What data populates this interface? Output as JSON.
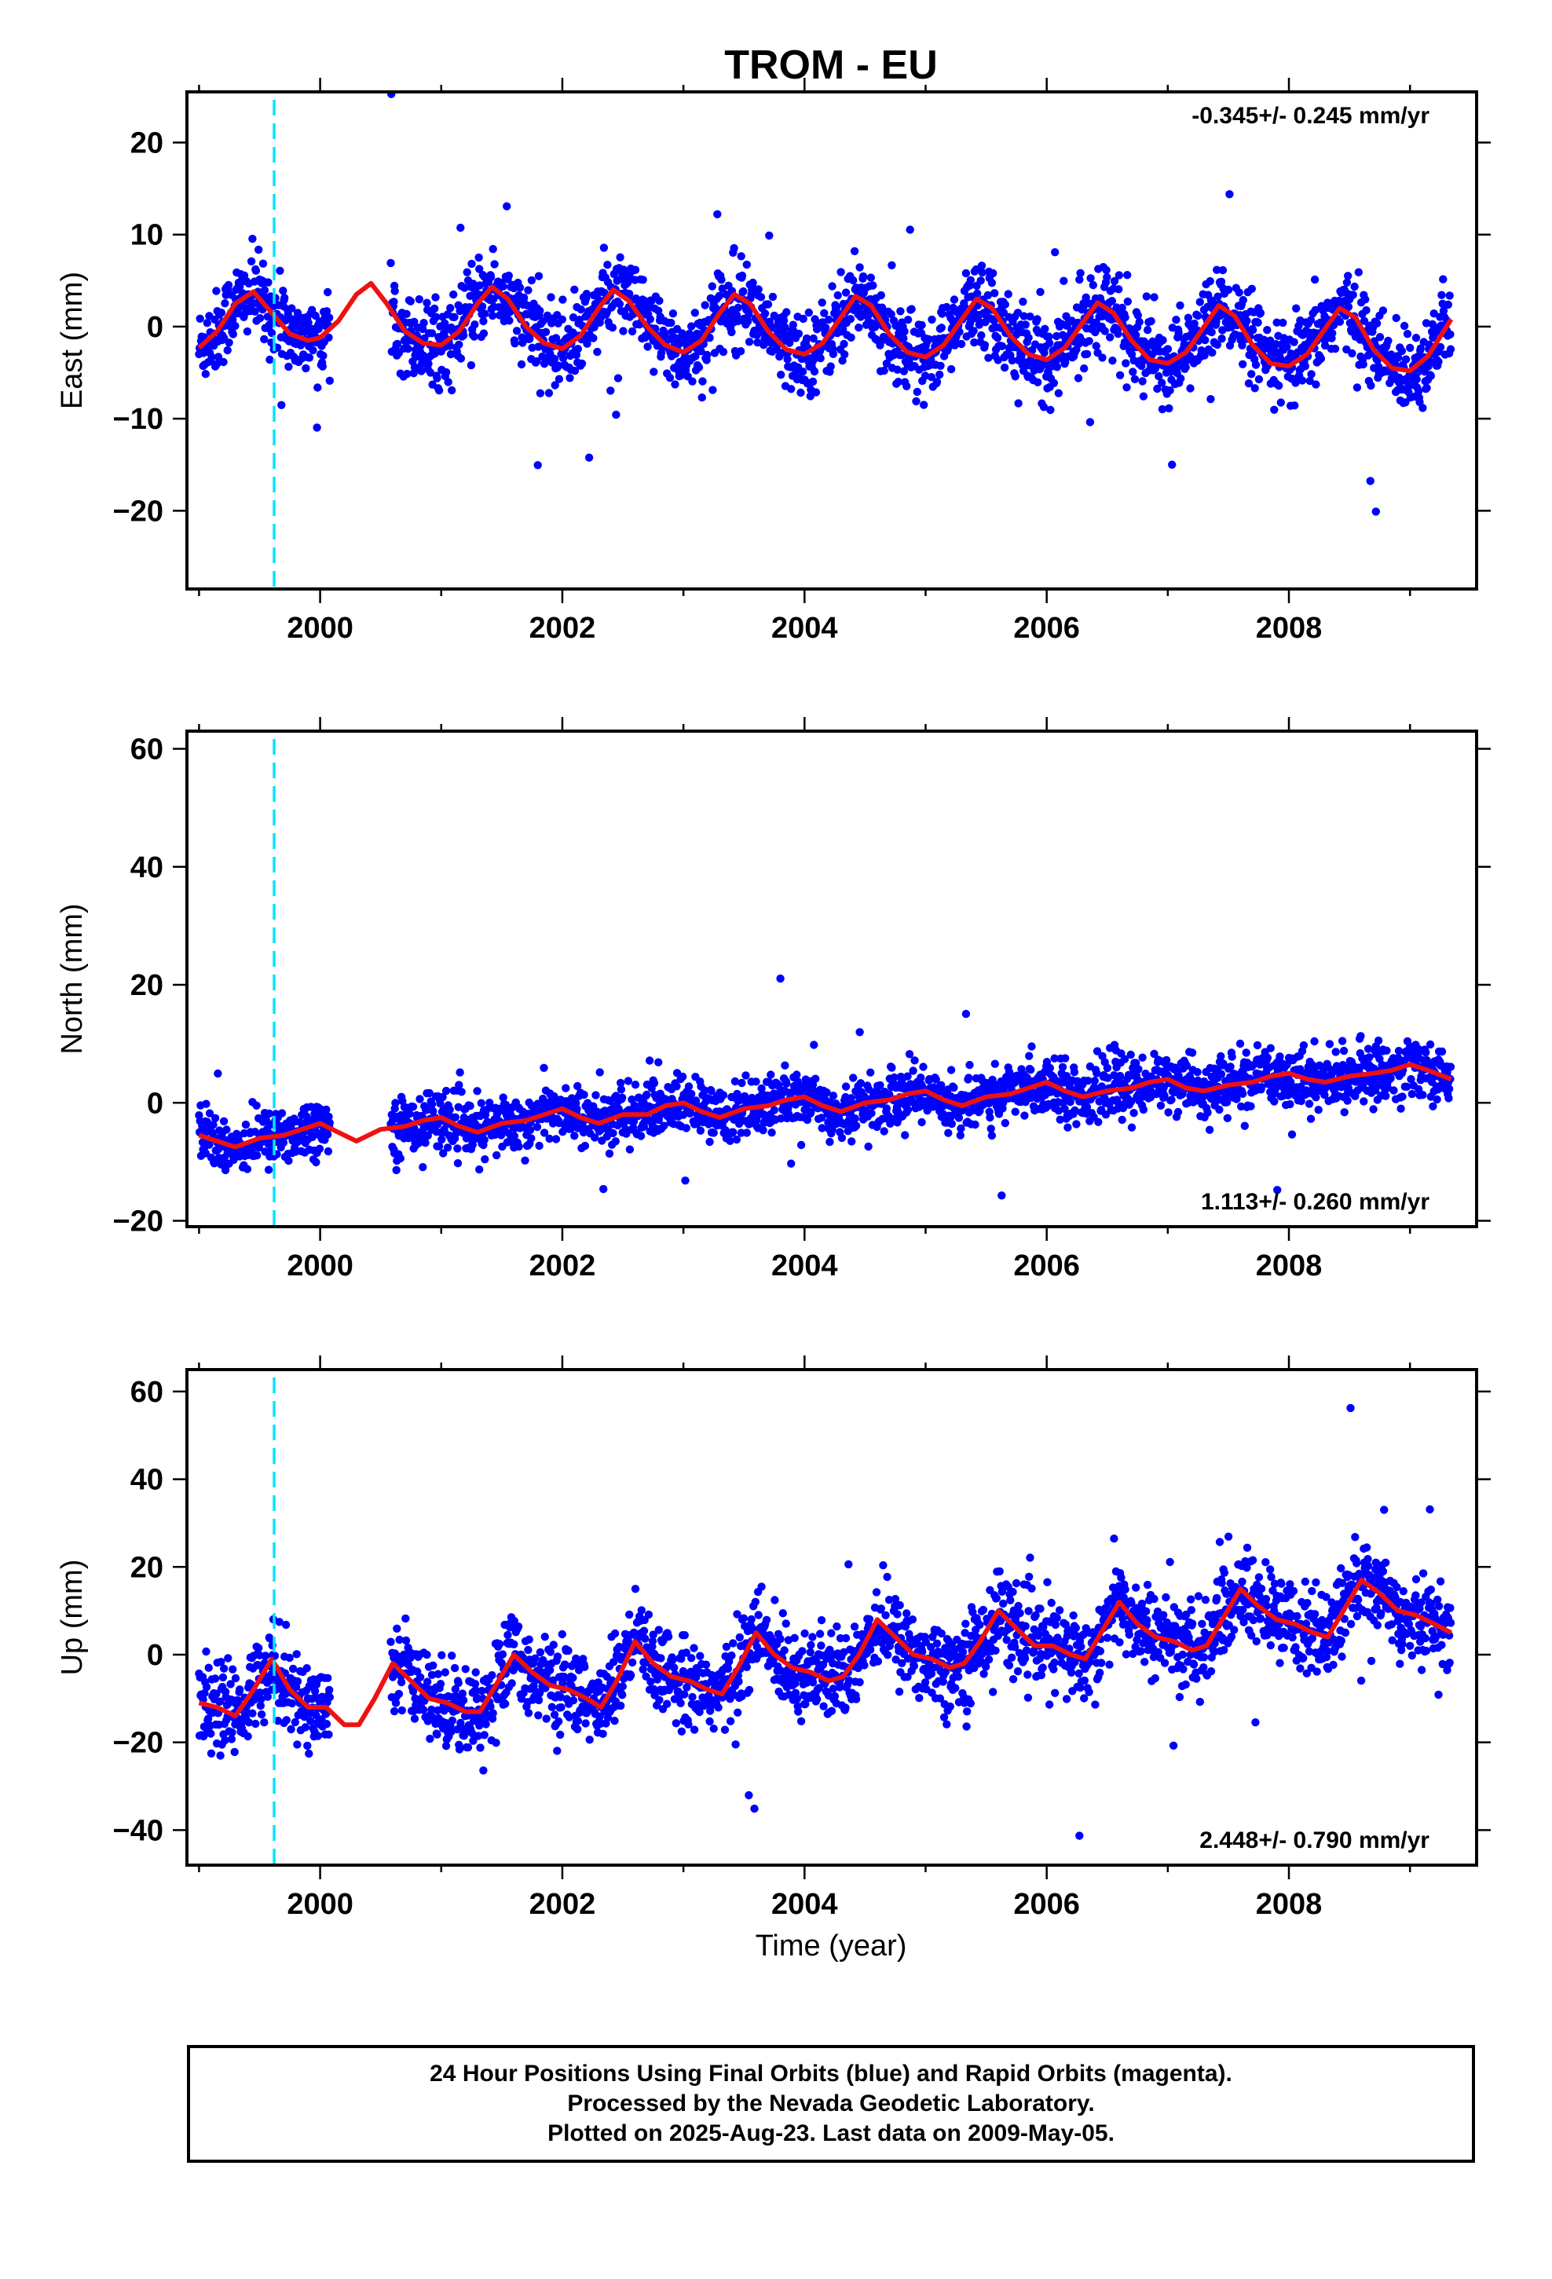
{
  "colors": {
    "data_points": "#0000ff",
    "model_curve": "#ee1111",
    "equipment_change": "#00e5ff",
    "frame": "#000000"
  },
  "title": "TROM - EU",
  "xlabel": "Time (year)",
  "caption": {
    "line1": "24 Hour Positions Using Final Orbits (blue) and Rapid Orbits (magenta).",
    "line2": "Processed by the Nevada Geodetic Laboratory.",
    "line3": "Plotted on 2025-Aug-23. Last data on 2009-May-05."
  },
  "chart_data": [
    {
      "type": "scatter",
      "ylabel": "East (mm)",
      "rate_text": "-0.345+/- 0.245 mm/yr",
      "xlim": [
        1998.9,
        2009.55
      ],
      "ylim": [
        -28.5,
        25.5
      ],
      "x_ticks": [
        2000,
        2002,
        2004,
        2006,
        2008
      ],
      "y_ticks": [
        -20,
        -10,
        0,
        10,
        20
      ],
      "y_tick_labels": [
        "−20",
        "−10",
        "0",
        "10",
        "20"
      ],
      "equipment_change": 1999.62,
      "model": {
        "x": [
          1999.0,
          1999.15,
          1999.3,
          1999.45,
          1999.6,
          1999.75,
          1999.9,
          2000.0,
          2000.15,
          2000.3,
          2000.42,
          2000.55,
          2000.7,
          2000.85,
          2001.0,
          2001.15,
          2001.3,
          2001.42,
          2001.55,
          2001.7,
          2001.85,
          2002.0,
          2002.15,
          2002.3,
          2002.42,
          2002.55,
          2002.7,
          2002.85,
          2003.0,
          2003.15,
          2003.3,
          2003.42,
          2003.55,
          2003.7,
          2003.85,
          2004.0,
          2004.15,
          2004.3,
          2004.42,
          2004.55,
          2004.7,
          2004.85,
          2005.0,
          2005.15,
          2005.3,
          2005.42,
          2005.55,
          2005.7,
          2005.85,
          2006.0,
          2006.15,
          2006.3,
          2006.42,
          2006.55,
          2006.7,
          2006.85,
          2007.0,
          2007.15,
          2007.3,
          2007.42,
          2007.55,
          2007.7,
          2007.85,
          2008.0,
          2008.15,
          2008.3,
          2008.42,
          2008.55,
          2008.7,
          2008.85,
          2009.0,
          2009.15,
          2009.34
        ],
        "y": [
          -2.3,
          -0.5,
          2.5,
          3.8,
          1.5,
          -0.8,
          -1.5,
          -1.2,
          0.6,
          3.5,
          4.7,
          2.5,
          -0.5,
          -1.8,
          -2.0,
          -0.5,
          2.5,
          4.3,
          3.0,
          0.0,
          -1.8,
          -2.4,
          -1.0,
          2.0,
          4.0,
          2.8,
          0.0,
          -2.0,
          -2.8,
          -1.5,
          1.5,
          3.5,
          2.5,
          -0.5,
          -2.5,
          -3.0,
          -1.8,
          1.0,
          3.3,
          2.3,
          -0.8,
          -2.8,
          -3.3,
          -2.0,
          0.8,
          3.0,
          2.0,
          -1.0,
          -3.0,
          -3.6,
          -2.3,
          0.5,
          2.6,
          1.5,
          -1.5,
          -3.6,
          -4.0,
          -2.8,
          0.0,
          2.3,
          1.2,
          -2.0,
          -4.0,
          -4.3,
          -3.0,
          -0.2,
          2.0,
          1.0,
          -2.5,
          -4.5,
          -4.8,
          -3.2,
          0.8
        ]
      }
    },
    {
      "type": "scatter",
      "ylabel": "North (mm)",
      "rate_text": "1.113+/- 0.260 mm/yr",
      "xlim": [
        1998.9,
        2009.55
      ],
      "ylim": [
        -21,
        63
      ],
      "x_ticks": [
        2000,
        2002,
        2004,
        2006,
        2008
      ],
      "y_ticks": [
        -20,
        0,
        20,
        40,
        60
      ],
      "y_tick_labels": [
        "−20",
        "0",
        "20",
        "40",
        "60"
      ],
      "equipment_change": 1999.62,
      "model": {
        "x": [
          1999.0,
          1999.15,
          1999.3,
          1999.5,
          1999.7,
          1999.85,
          2000.0,
          2000.15,
          2000.3,
          2000.5,
          2000.7,
          2000.85,
          2001.0,
          2001.15,
          2001.3,
          2001.5,
          2001.7,
          2001.85,
          2002.0,
          2002.15,
          2002.3,
          2002.5,
          2002.7,
          2002.85,
          2003.0,
          2003.15,
          2003.3,
          2003.5,
          2003.7,
          2003.85,
          2004.0,
          2004.15,
          2004.3,
          2004.5,
          2004.7,
          2004.85,
          2005.0,
          2005.15,
          2005.3,
          2005.5,
          2005.7,
          2005.85,
          2006.0,
          2006.15,
          2006.3,
          2006.5,
          2006.7,
          2006.85,
          2007.0,
          2007.15,
          2007.3,
          2007.5,
          2007.7,
          2007.85,
          2008.0,
          2008.15,
          2008.3,
          2008.5,
          2008.7,
          2008.85,
          2009.0,
          2009.15,
          2009.34
        ],
        "y": [
          -5.5,
          -6.5,
          -7.5,
          -6.0,
          -5.5,
          -4.5,
          -3.5,
          -5.0,
          -6.5,
          -4.5,
          -4.0,
          -3.0,
          -2.5,
          -4.0,
          -5.0,
          -3.5,
          -3.0,
          -2.0,
          -1.0,
          -2.5,
          -3.5,
          -2.0,
          -2.0,
          -0.5,
          0.0,
          -1.5,
          -2.5,
          -1.0,
          -0.5,
          0.5,
          1.0,
          -0.5,
          -1.5,
          0.0,
          0.5,
          1.5,
          2.0,
          0.5,
          -0.5,
          1.0,
          1.5,
          2.5,
          3.5,
          2.0,
          1.0,
          2.0,
          2.5,
          3.5,
          4.0,
          2.5,
          2.0,
          3.0,
          3.5,
          4.5,
          5.0,
          4.0,
          3.5,
          4.5,
          5.0,
          5.5,
          6.5,
          5.5,
          4.0
        ]
      }
    },
    {
      "type": "scatter",
      "ylabel": "Up (mm)",
      "rate_text": "2.448+/- 0.790 mm/yr",
      "xlim": [
        1998.9,
        2009.55
      ],
      "ylim": [
        -48,
        65
      ],
      "x_ticks": [
        2000,
        2002,
        2004,
        2006,
        2008
      ],
      "y_ticks": [
        -40,
        -20,
        0,
        20,
        40,
        60
      ],
      "y_tick_labels": [
        "−40",
        "−20",
        "0",
        "20",
        "40",
        "60"
      ],
      "equipment_change": 1999.62,
      "model": {
        "x": [
          1999.0,
          1999.15,
          1999.3,
          1999.45,
          1999.6,
          1999.75,
          1999.9,
          2000.05,
          2000.2,
          2000.32,
          2000.45,
          2000.6,
          2000.75,
          2000.9,
          2001.05,
          2001.2,
          2001.32,
          2001.45,
          2001.6,
          2001.75,
          2001.9,
          2002.05,
          2002.2,
          2002.32,
          2002.45,
          2002.6,
          2002.75,
          2002.9,
          2003.05,
          2003.2,
          2003.32,
          2003.45,
          2003.6,
          2003.75,
          2003.9,
          2004.05,
          2004.2,
          2004.32,
          2004.45,
          2004.6,
          2004.75,
          2004.9,
          2005.05,
          2005.2,
          2005.32,
          2005.45,
          2005.6,
          2005.75,
          2005.9,
          2006.05,
          2006.2,
          2006.32,
          2006.45,
          2006.6,
          2006.75,
          2006.9,
          2007.05,
          2007.2,
          2007.32,
          2007.45,
          2007.6,
          2007.75,
          2007.9,
          2008.05,
          2008.2,
          2008.32,
          2008.45,
          2008.6,
          2008.75,
          2008.9,
          2009.05,
          2009.2,
          2009.34
        ],
        "y": [
          -11,
          -12,
          -14,
          -8,
          -1,
          -8,
          -12,
          -12,
          -16,
          -16,
          -10,
          -2,
          -6,
          -10,
          -11,
          -13,
          -13,
          -7,
          0,
          -4,
          -7,
          -8,
          -10,
          -12,
          -6,
          3,
          -2,
          -5,
          -6,
          -8,
          -9,
          -3,
          5,
          0,
          -3,
          -4,
          -6,
          -5,
          0,
          8,
          4,
          0,
          -1,
          -3,
          -2,
          3,
          10,
          6,
          2,
          2,
          0,
          -1,
          5,
          12,
          7,
          4,
          3,
          1,
          2,
          8,
          15,
          11,
          8,
          7,
          5,
          4,
          10,
          17,
          14,
          10,
          9,
          7,
          5
        ]
      }
    }
  ]
}
